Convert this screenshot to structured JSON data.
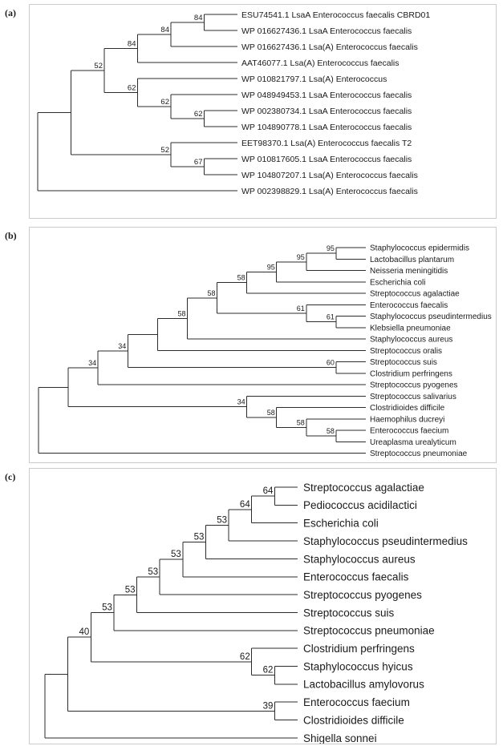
{
  "figure": {
    "type": "phylogenetic-tree-figure",
    "background_color": "#ffffff",
    "line_color": "#2b2b2b",
    "text_color": "#1a1a1a",
    "box_border_color": "#cccccc",
    "panels": [
      {
        "label": "(a)",
        "tree": {
          "children": [
            {
              "children": [
                {
                  "support": "52",
                  "children": [
                    {
                      "support": "84",
                      "children": [
                        {
                          "support": "84",
                          "children": [
                            {
                              "support": "84",
                              "children": [
                                {
                                  "name": "ESU74541.1 LsaA Enterococcus faecalis CBRD01"
                                },
                                {
                                  "name": "WP 016627436.1 LsaA Enterococcus faecalis"
                                }
                              ]
                            },
                            {
                              "name": "WP 016627436.1 Lsa(A) Enterococcus faecalis"
                            }
                          ]
                        },
                        {
                          "name": "AAT46077.1 Lsa(A) Enterococcus faecalis"
                        }
                      ]
                    },
                    {
                      "support": "62",
                      "children": [
                        {
                          "name": "WP 010821797.1 Lsa(A) Enterococcus"
                        },
                        {
                          "support": "62",
                          "children": [
                            {
                              "name": "WP 048949453.1 LsaA Enterococcus faecalis"
                            },
                            {
                              "support": "62",
                              "children": [
                                {
                                  "name": "WP 002380734.1 LsaA Enterococcus faecalis"
                                },
                                {
                                  "name": "WP 104890778.1 LsaA Enterococcus faecalis"
                                }
                              ]
                            }
                          ]
                        }
                      ]
                    }
                  ]
                },
                {
                  "support": "52",
                  "children": [
                    {
                      "name": "EET98370.1 Lsa(A) Enterococcus faecalis T2"
                    },
                    {
                      "support": "67",
                      "children": [
                        {
                          "name": "WP 010817605.1 LsaA Enterococcus faecalis"
                        },
                        {
                          "name": "WP 104807207.1 Lsa(A) Enterococcus faecalis"
                        }
                      ]
                    }
                  ]
                }
              ]
            },
            {
              "name": "WP 002398829.1 Lsa(A) Enterococcus faecalis"
            }
          ]
        }
      },
      {
        "label": "(b)",
        "tree": {
          "children": [
            {
              "children": [
                {
                  "support": "34",
                  "children": [
                    {
                      "support": "34",
                      "children": [
                        {
                          "children": [
                            {
                              "support": "58",
                              "children": [
                                {
                                  "support": "58",
                                  "children": [
                                    {
                                      "support": "58",
                                      "children": [
                                        {
                                          "support": "95",
                                          "children": [
                                            {
                                              "support": "95",
                                              "children": [
                                                {
                                                  "support": "95",
                                                  "children": [
                                                    {
                                                      "name": "Staphylococcus epidermidis"
                                                    },
                                                    {
                                                      "name": "Lactobacillus plantarum"
                                                    }
                                                  ]
                                                },
                                                {
                                                  "name": "Neisseria meningitidis"
                                                }
                                              ]
                                            },
                                            {
                                              "name": "Escherichia coli"
                                            }
                                          ]
                                        },
                                        {
                                          "name": "Streptococcus agalactiae"
                                        }
                                      ]
                                    },
                                    {
                                      "support": "61",
                                      "children": [
                                        {
                                          "name": "Enterococcus faecalis"
                                        },
                                        {
                                          "support": "61",
                                          "children": [
                                            {
                                              "name": "Staphylococcus pseudintermedius"
                                            },
                                            {
                                              "name": "Klebsiella pneumoniae"
                                            }
                                          ]
                                        }
                                      ]
                                    }
                                  ]
                                },
                                {
                                  "name": "Staphylococcus aureus"
                                }
                              ]
                            },
                            {
                              "name": "Streptococcus oralis"
                            }
                          ]
                        },
                        {
                          "support": "60",
                          "children": [
                            {
                              "name": "Streptococcus suis"
                            },
                            {
                              "name": "Clostridium perfringens"
                            }
                          ]
                        }
                      ]
                    },
                    {
                      "name": "Streptococcus pyogenes"
                    }
                  ]
                },
                {
                  "support": "34",
                  "children": [
                    {
                      "name": "Streptococcus salivarius"
                    },
                    {
                      "support": "58",
                      "children": [
                        {
                          "name": "Clostridioides difficile"
                        },
                        {
                          "support": "58",
                          "children": [
                            {
                              "name": "Haemophilus ducreyi"
                            },
                            {
                              "support": "58",
                              "children": [
                                {
                                  "name": "Enterococcus faecium"
                                },
                                {
                                  "name": "Ureaplasma urealyticum"
                                }
                              ]
                            }
                          ]
                        }
                      ]
                    }
                  ]
                }
              ]
            },
            {
              "name": "Streptococcus pneumoniae"
            }
          ]
        }
      },
      {
        "label": "(c)",
        "tree": {
          "children": [
            {
              "children": [
                {
                  "support": "40",
                  "children": [
                    {
                      "support": "53",
                      "children": [
                        {
                          "support": "53",
                          "children": [
                            {
                              "support": "53",
                              "children": [
                                {
                                  "support": "53",
                                  "children": [
                                    {
                                      "support": "53",
                                      "children": [
                                        {
                                          "support": "53",
                                          "children": [
                                            {
                                              "support": "64",
                                              "children": [
                                                {
                                                  "support": "64",
                                                  "children": [
                                                    {
                                                      "name": "Streptococcus agalactiae"
                                                    },
                                                    {
                                                      "name": "Pediococcus acidilactici"
                                                    }
                                                  ]
                                                },
                                                {
                                                  "name": "Escherichia coli"
                                                }
                                              ]
                                            },
                                            {
                                              "name": "Staphylococcus pseudintermedius"
                                            }
                                          ]
                                        },
                                        {
                                          "name": "Staphylococcus aureus"
                                        }
                                      ]
                                    },
                                    {
                                      "name": "Enterococcus faecalis"
                                    }
                                  ]
                                },
                                {
                                  "name": "Streptococcus pyogenes"
                                }
                              ]
                            },
                            {
                              "name": "Streptococcus suis"
                            }
                          ]
                        },
                        {
                          "name": "Streptococcus pneumoniae"
                        }
                      ]
                    },
                    {
                      "support": "62",
                      "children": [
                        {
                          "name": "Clostridium perfringens"
                        },
                        {
                          "support": "62",
                          "children": [
                            {
                              "name": "Staphylococcus hyicus"
                            },
                            {
                              "name": "Lactobacillus amylovorus"
                            }
                          ]
                        }
                      ]
                    }
                  ]
                },
                {
                  "support": "39",
                  "children": [
                    {
                      "name": "Enterococcus faecium"
                    },
                    {
                      "name": "Clostridioides difficile"
                    }
                  ]
                }
              ]
            },
            {
              "name": "Shigella sonnei"
            }
          ]
        }
      }
    ]
  }
}
